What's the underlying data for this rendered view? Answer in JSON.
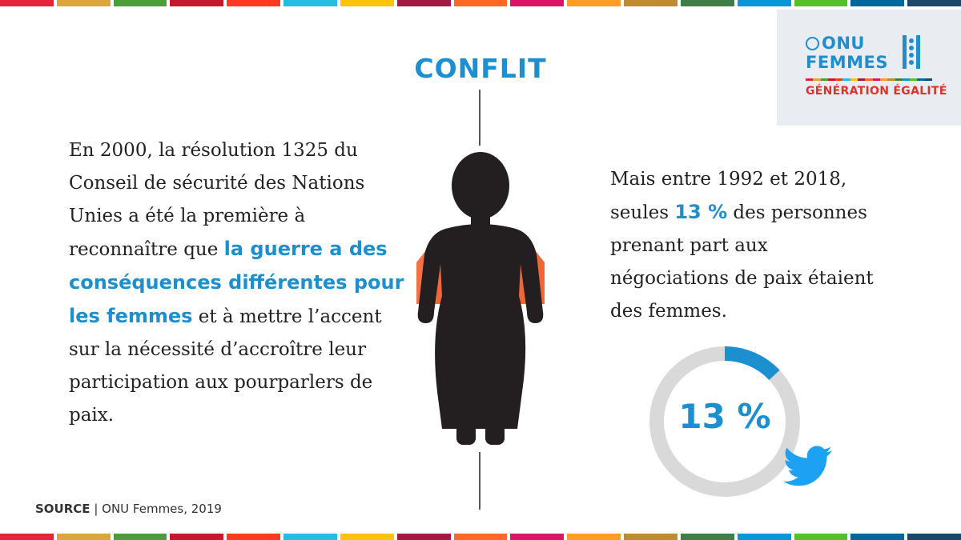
{
  "title": "CONFLIT",
  "logo": {
    "line1": "ONU",
    "line2": "FEMMES",
    "tagline": "GÉNÉRATION ÉGALITÉ",
    "icons": [
      "un-emblem-icon",
      "women-figures-icon"
    ]
  },
  "left_text": {
    "part1": "En 2000, la résolution 1325 du Conseil de sécurité des Nations Unies a été la première à reconnaître que ",
    "highlight": "la guerre a des conséquences différentes pour les femmes",
    "part2": " et à mettre l’accent sur la nécessité d’accroître leur participation aux pourparlers de paix."
  },
  "right_text": {
    "part1": "Mais entre 1992 et 2018, seules ",
    "highlight": "13 %",
    "part2": " des personnes prenant part aux négociations de paix étaient des femmes."
  },
  "stat": {
    "label": "13 %",
    "value": 13,
    "max": 100
  },
  "source": {
    "label": "SOURCE",
    "separator": " | ",
    "text": "ONU Femmes, 2019"
  },
  "icons": [
    "woman-silhouette-icon",
    "twitter-bird-icon"
  ],
  "colors": {
    "accent": "#1b8fcf",
    "donut_track": "#d9d9d9",
    "scarf": "#f26537",
    "figure": "#231f20",
    "tagline": "#e0312a",
    "stripes": [
      "#e5243b",
      "#dda63a",
      "#4c9f38",
      "#c5192d",
      "#ff3a21",
      "#26bde2",
      "#fcc30b",
      "#a21942",
      "#fd6925",
      "#dd1367",
      "#fd9d24",
      "#bf8b2e",
      "#3f7e44",
      "#0a97d9",
      "#56c02b",
      "#00689d",
      "#19486a"
    ]
  }
}
